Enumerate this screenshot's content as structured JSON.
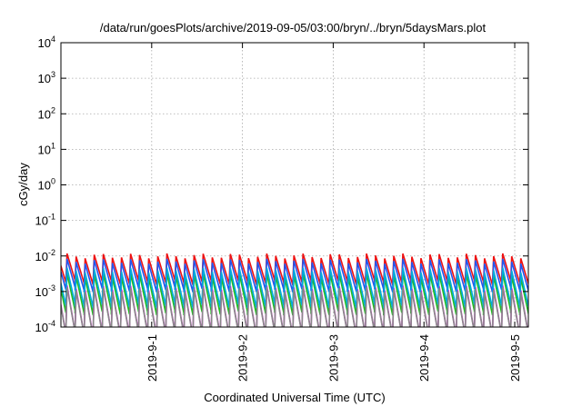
{
  "chart_data": {
    "type": "line",
    "title": "/data/run/goesPlots/archive/2019-09-05/03:00/bryn/../bryn/5daysMars.plot",
    "xlabel": "Coordinated Universal Time (UTC)",
    "ylabel": "cGy/day",
    "y_scale": "log",
    "ylim_exp": [
      -4,
      4
    ],
    "y_ticks": [
      {
        "base": "10",
        "exp": "-4"
      },
      {
        "base": "10",
        "exp": "-3"
      },
      {
        "base": "10",
        "exp": "-2"
      },
      {
        "base": "10",
        "exp": "-1"
      },
      {
        "base": "10",
        "exp": "0"
      },
      {
        "base": "10",
        "exp": "1"
      },
      {
        "base": "10",
        "exp": "2"
      },
      {
        "base": "10",
        "exp": "3"
      },
      {
        "base": "10",
        "exp": "4"
      }
    ],
    "xlim": [
      0.0,
      5.15
    ],
    "x_ticks": [
      {
        "label": "2019-9-1",
        "pos": 1.0
      },
      {
        "label": "2019-9-2",
        "pos": 2.0
      },
      {
        "label": "2019-9-3",
        "pos": 3.0
      },
      {
        "label": "2019-9-4",
        "pos": 4.0
      },
      {
        "label": "2019-9-5",
        "pos": 5.0
      }
    ],
    "grid": true,
    "sawtooth_period_days": 0.1,
    "series": [
      {
        "color": "#ee1111",
        "peak_exp": -2.0,
        "drop": 0.75
      },
      {
        "color": "#22bb22",
        "peak_exp": -2.55,
        "drop": 1.05
      },
      {
        "color": "#2255ee",
        "peak_exp": -2.15,
        "drop": 0.8
      },
      {
        "color": "#dd00dd",
        "peak_exp": -2.9,
        "drop": 1.3
      },
      {
        "color": "#00aadd",
        "peak_exp": -2.4,
        "drop": 1.0
      },
      {
        "color": "#888888",
        "peak_exp": -2.95,
        "drop": 1.25
      }
    ]
  }
}
